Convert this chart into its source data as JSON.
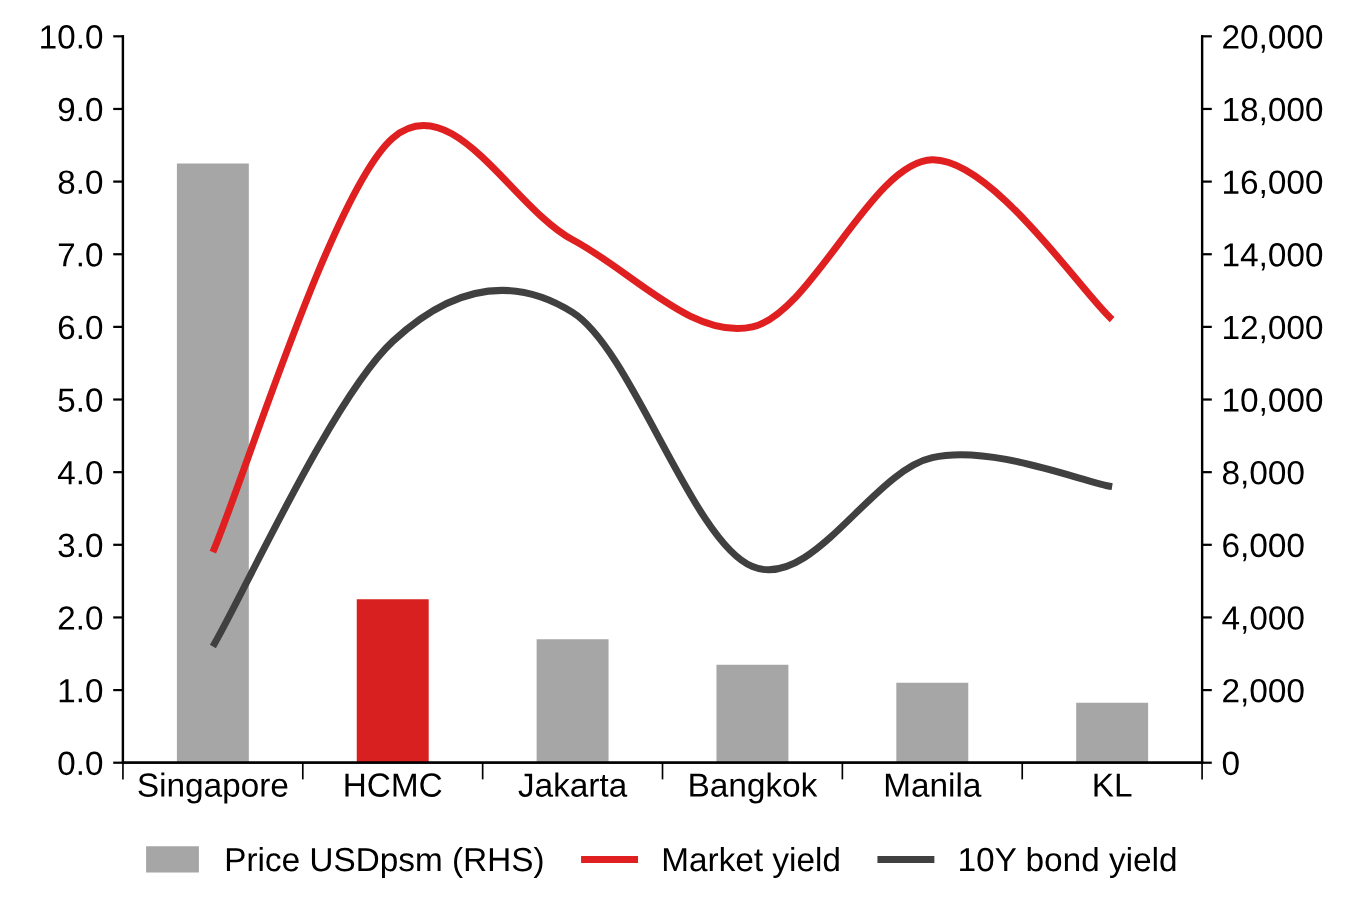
{
  "chart_data": {
    "type": "line",
    "categories": [
      "Singapore",
      "HCMC",
      "Jakarta",
      "Bangkok",
      "Manila",
      "KL"
    ],
    "series": [
      {
        "name": "Price USDpsm (RHS)",
        "type": "bar",
        "axis": "y2",
        "color": "#a6a6a6",
        "colors": [
          "#a6a6a6",
          "#d7201f",
          "#a6a6a6",
          "#a6a6a6",
          "#a6a6a6",
          "#a6a6a6"
        ],
        "values": [
          16500,
          4500,
          3400,
          2700,
          2200,
          1650
        ]
      },
      {
        "name": "Market yield",
        "color": "#e02020",
        "values": [
          2.9,
          8.6,
          7.2,
          6.0,
          8.3,
          6.1
        ]
      },
      {
        "name": "10Y bond yield",
        "color": "#404040",
        "values": [
          1.6,
          5.8,
          6.2,
          2.7,
          4.2,
          3.8
        ]
      }
    ],
    "ylim": [
      0,
      10
    ],
    "yticks": [
      {
        "value": 0,
        "label": "0.0"
      },
      {
        "value": 1,
        "label": "1.0"
      },
      {
        "value": 2,
        "label": "2.0"
      },
      {
        "value": 3,
        "label": "3.0"
      },
      {
        "value": 4,
        "label": "4.0"
      },
      {
        "value": 5,
        "label": "5.0"
      },
      {
        "value": 6,
        "label": "6.0"
      },
      {
        "value": 7,
        "label": "7.0"
      },
      {
        "value": 8,
        "label": "8.0"
      },
      {
        "value": 9,
        "label": "9.0"
      },
      {
        "value": 10,
        "label": "10.0"
      }
    ],
    "y2lim": [
      0,
      20000
    ],
    "y2ticks": [
      0,
      {
        "value": 2000,
        "label": "2,000"
      },
      {
        "value": 4000,
        "label": "4,000"
      },
      {
        "value": 6000,
        "label": "6,000"
      },
      {
        "value": 8000,
        "label": "8,000"
      },
      {
        "value": 10000,
        "label": "10,000"
      },
      {
        "value": 12000,
        "label": "12,000"
      },
      {
        "value": 14000,
        "label": "14,000"
      },
      {
        "value": 16000,
        "label": "16,000"
      },
      {
        "value": 18000,
        "label": "18,000"
      },
      {
        "value": 20000,
        "label": "20,000"
      }
    ],
    "legend": "bottom",
    "grid": false
  }
}
